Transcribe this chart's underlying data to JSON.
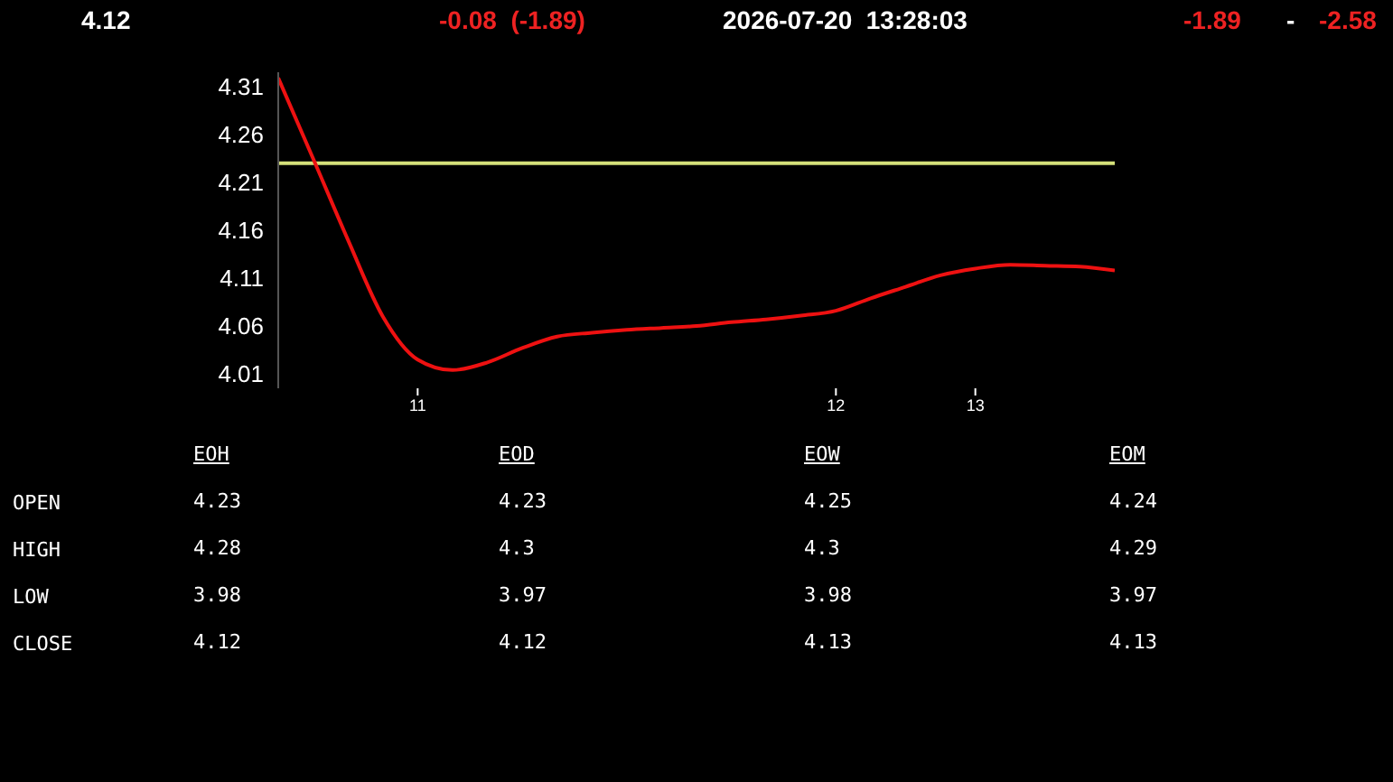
{
  "chart_data": [
    {
      "type": "line",
      "annotations": [
        "4.12",
        "-0.08  (-1.89)",
        "2026-07-20  13:28:03",
        "-1.89",
        "-",
        "-2.58"
      ],
      "categories": [
        null,
        null,
        null,
        null,
        "11",
        null,
        null,
        null,
        null,
        null,
        null,
        null,
        null,
        null,
        null,
        null,
        "12",
        null,
        null,
        null,
        "13",
        null,
        null,
        null,
        null
      ],
      "series": [
        {
          "color": "#ee1111",
          "values": [
            4.319,
            4.235,
            4.15,
            4.07,
            4.025,
            4.014,
            4.022,
            4.037,
            4.049,
            4.053,
            4.056,
            4.058,
            4.06,
            4.064,
            4.067,
            4.071,
            4.076,
            4.089,
            4.101,
            4.113,
            4.12,
            4.124,
            4.123,
            4.122,
            4.118
          ]
        }
      ],
      "ylim": [
        3.995,
        4.325
      ],
      "yticks": [
        4.01,
        4.06,
        4.11,
        4.16,
        4.21,
        4.26,
        4.31
      ],
      "ref_lines": [
        {
          "axis": "y",
          "value": 4.23,
          "color": "#d4e07a"
        }
      ],
      "grid": false,
      "legend": false,
      "marker": "none",
      "line_style": "solid"
    },
    {
      "type": "heatmap",
      "categories": [
        "EOH",
        "EOD",
        "EOW",
        "EOM"
      ],
      "y_categories": [
        "OPEN",
        "HIGH",
        "LOW",
        "CLOSE"
      ],
      "cells": [
        [
          4.23,
          4.23,
          4.25,
          4.24
        ],
        [
          4.28,
          4.3,
          4.3,
          4.29
        ],
        [
          3.98,
          3.97,
          3.98,
          3.97
        ],
        [
          4.12,
          4.12,
          4.13,
          4.13
        ]
      ],
      "data_labels": true
    }
  ]
}
